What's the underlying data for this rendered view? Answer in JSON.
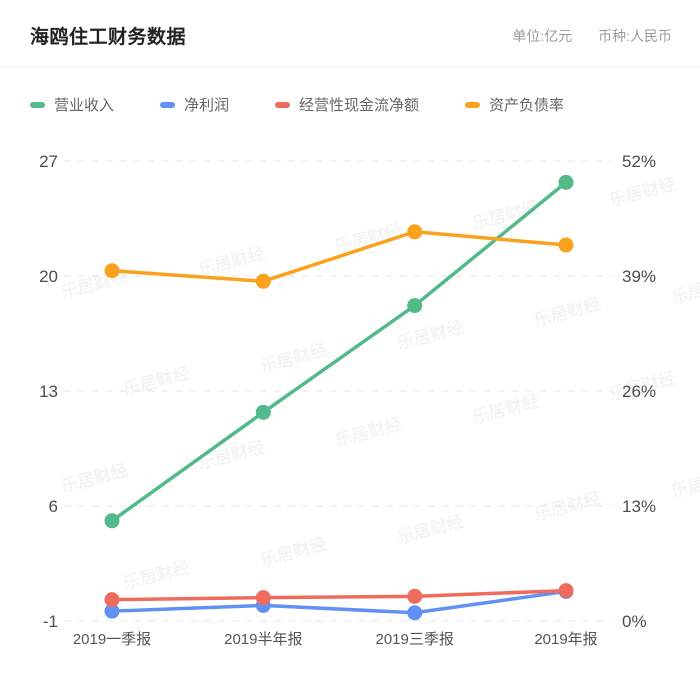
{
  "header": {
    "title": "海鸥住工财务数据",
    "unit_label": "单位:亿元",
    "currency_label": "币种:人民币"
  },
  "watermark": {
    "text": "乐居财经"
  },
  "legend": {
    "items": [
      {
        "label": "营业收入",
        "color": "#52b98a"
      },
      {
        "label": "净利润",
        "color": "#6191f2"
      },
      {
        "label": "经营性现金流净额",
        "color": "#ee6c5d"
      },
      {
        "label": "资产负债率",
        "color": "#faa21d"
      }
    ]
  },
  "chart_data": {
    "type": "line",
    "title": "海鸥住工财务数据",
    "categories": [
      "2019一季报",
      "2019半年报",
      "2019三季报",
      "2019年报"
    ],
    "series": [
      {
        "name": "营业收入",
        "axis": "left",
        "color": "#52b98a",
        "values": [
          5.1,
          11.7,
          18.2,
          25.7
        ]
      },
      {
        "name": "净利润",
        "axis": "left",
        "color": "#6191f2",
        "values": [
          -0.4,
          -0.05,
          -0.5,
          0.8
        ]
      },
      {
        "name": "经营性现金流净额",
        "axis": "left",
        "color": "#ee6c5d",
        "values": [
          0.3,
          0.42,
          0.5,
          0.85
        ]
      },
      {
        "name": "资产负债率",
        "axis": "right",
        "color": "#faa21d",
        "values": [
          39.6,
          38.4,
          44.0,
          42.5
        ]
      }
    ],
    "left_axis": {
      "ticks": [
        "27",
        "20",
        "13",
        "6",
        "-1"
      ],
      "min": -1,
      "max": 27
    },
    "right_axis": {
      "ticks": [
        "52%",
        "39%",
        "26%",
        "13%",
        "0%"
      ],
      "min": 0,
      "max": 52
    },
    "grid": true,
    "grid_style": "dashed",
    "legend_position": "top"
  }
}
